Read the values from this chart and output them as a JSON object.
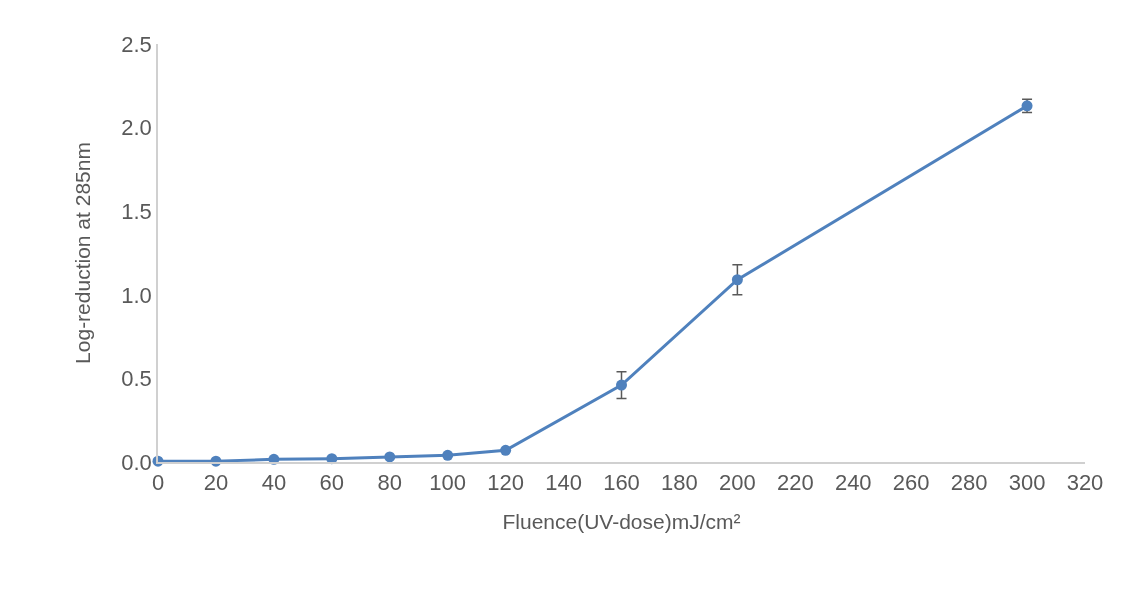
{
  "chart_data": {
    "type": "line",
    "xlabel": "Fluence(UV-dose)mJ/cm²",
    "ylabel": "Log-reduction at 285nm",
    "x": [
      0,
      20,
      40,
      60,
      80,
      100,
      120,
      160,
      200,
      300
    ],
    "series": [
      {
        "color": "#4f81bd",
        "values": [
          0.005,
          0.005,
          0.016,
          0.02,
          0.03,
          0.04,
          0.07,
          0.46,
          1.09,
          2.13
        ],
        "errors": [
          null,
          null,
          null,
          null,
          null,
          null,
          null,
          0.08,
          0.09,
          0.04
        ]
      }
    ],
    "xlim": [
      0,
      320
    ],
    "xticks": [
      0,
      20,
      40,
      60,
      80,
      100,
      120,
      140,
      160,
      180,
      200,
      220,
      240,
      260,
      280,
      300,
      320
    ],
    "ylim": [
      0,
      2.5
    ],
    "yticks": [
      {
        "value": 0,
        "label": "0.0"
      },
      {
        "value": 0.5,
        "label": "0.5"
      },
      {
        "value": 1,
        "label": "1.0"
      },
      {
        "value": 1.5,
        "label": "1.5"
      },
      {
        "value": 2,
        "label": "2.0"
      },
      {
        "value": 2.5,
        "label": "2.5"
      }
    ],
    "grid": false,
    "legend": false,
    "marker": "circle",
    "line_style": "solid"
  }
}
